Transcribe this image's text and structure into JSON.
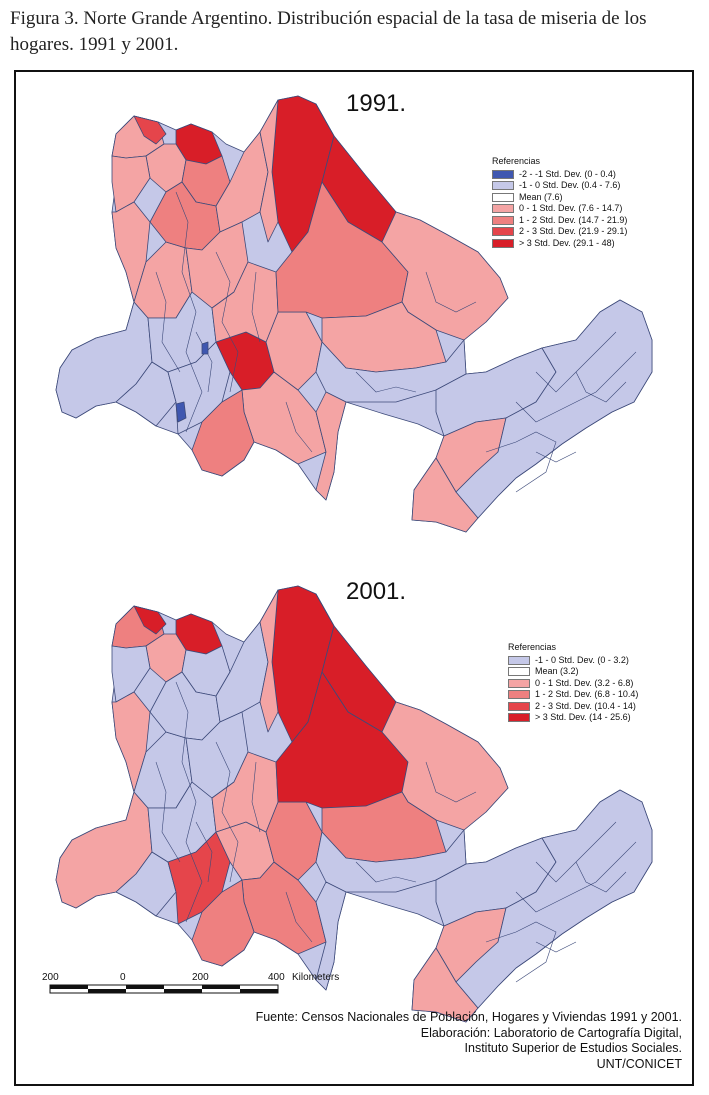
{
  "caption": "Figura 3. Norte Grande Argentino. Distribución espacial de la tasa de miseria de los hogares. 1991 y 2001.",
  "colors": {
    "below2": "#3f57b0",
    "below1": "#c5c8e8",
    "mean": "#ffffff",
    "above1": "#f4a4a4",
    "above2": "#ee8080",
    "above3": "#e5454b",
    "above4": "#d81e28",
    "border": "#3d4a7a"
  },
  "maps": [
    {
      "year": "1991.",
      "legend_title": "Referencias",
      "legend": [
        {
          "label": "-2 - -1 Std. Dev. (0 - 0.4)",
          "color": "#3f57b0"
        },
        {
          "label": "-1 - 0 Std. Dev. (0.4 - 7.6)",
          "color": "#c5c8e8"
        },
        {
          "label": "Mean (7.6)",
          "color": "#ffffff"
        },
        {
          "label": "0 - 1 Std. Dev. (7.6 - 14.7)",
          "color": "#f4a4a4"
        },
        {
          "label": "1 - 2 Std. Dev. (14.7 - 21.9)",
          "color": "#ee8080"
        },
        {
          "label": "2 - 3 Std. Dev. (21.9 - 29.1)",
          "color": "#e5454b"
        },
        {
          "label": "> 3 Std. Dev. (29.1 - 48)",
          "color": "#d81e28"
        }
      ]
    },
    {
      "year": "2001.",
      "legend_title": "Referencias",
      "legend": [
        {
          "label": "-1 - 0 Std. Dev. (0 - 3.2)",
          "color": "#c5c8e8"
        },
        {
          "label": "Mean (3.2)",
          "color": "#ffffff"
        },
        {
          "label": "0 - 1 Std. Dev. (3.2 - 6.8)",
          "color": "#f4a4a4"
        },
        {
          "label": "1 - 2 Std. Dev. (6.8 - 10.4)",
          "color": "#ee8080"
        },
        {
          "label": "2 - 3 Std. Dev. (10.4 - 14)",
          "color": "#e5454b"
        },
        {
          "label": "> 3 Std. Dev. (14 - 25.6)",
          "color": "#d81e28"
        }
      ]
    }
  ],
  "scale_bar": {
    "ticks": [
      "200",
      "0",
      "200",
      "400"
    ],
    "unit": "Kilometers"
  },
  "credits": [
    "Fuente: Censos Nacionales de Población, Hogares y Viviendas 1991 y 2001.",
    "Elaboración: Laboratorio de Cartografía Digital,",
    "Instituto Superior de Estudios Sociales.",
    "UNT/CONICET"
  ]
}
